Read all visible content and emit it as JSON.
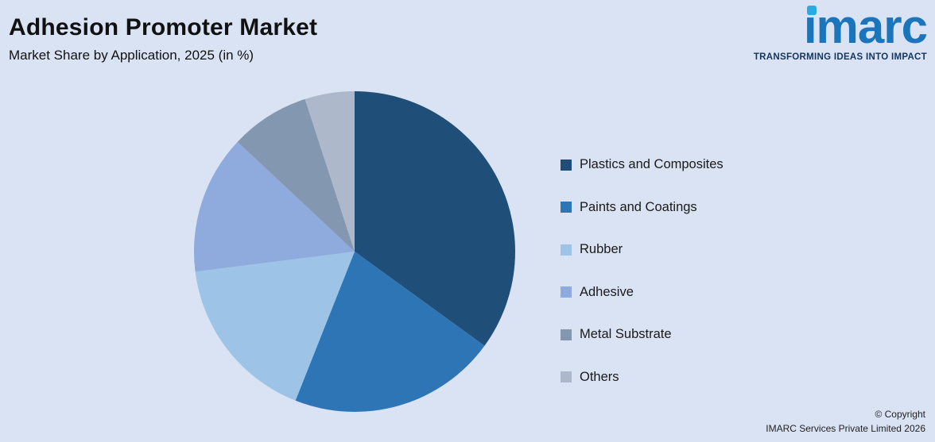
{
  "header": {
    "title": "Adhesion Promoter Market",
    "subtitle": "Market Share by Application, 2025 (in %)"
  },
  "logo": {
    "text": "imarc",
    "tagline": "TRANSFORMING IDEAS INTO IMPACT",
    "brand_blue": "#1b75bc",
    "dot_cyan": "#29abe2"
  },
  "chart_data": {
    "type": "pie",
    "title": "Adhesion Promoter Market",
    "subtitle": "Market Share by Application, 2025 (in %)",
    "categories": [
      "Plastics and Composites",
      "Paints and Coatings",
      "Rubber",
      "Adhesive",
      "Metal Substrate",
      "Others"
    ],
    "values": [
      35,
      21,
      17,
      14,
      8,
      5
    ],
    "unit": "%",
    "colors": [
      "#1f4e79",
      "#2e75b6",
      "#9dc3e6",
      "#8faadc",
      "#8497b0",
      "#adb9ca"
    ],
    "start_angle_deg": 0,
    "direction": "clockwise",
    "legend_position": "right",
    "data_labels": false
  },
  "footer": {
    "line1": "© Copyright",
    "line2": "IMARC Services Private Limited 2026"
  }
}
